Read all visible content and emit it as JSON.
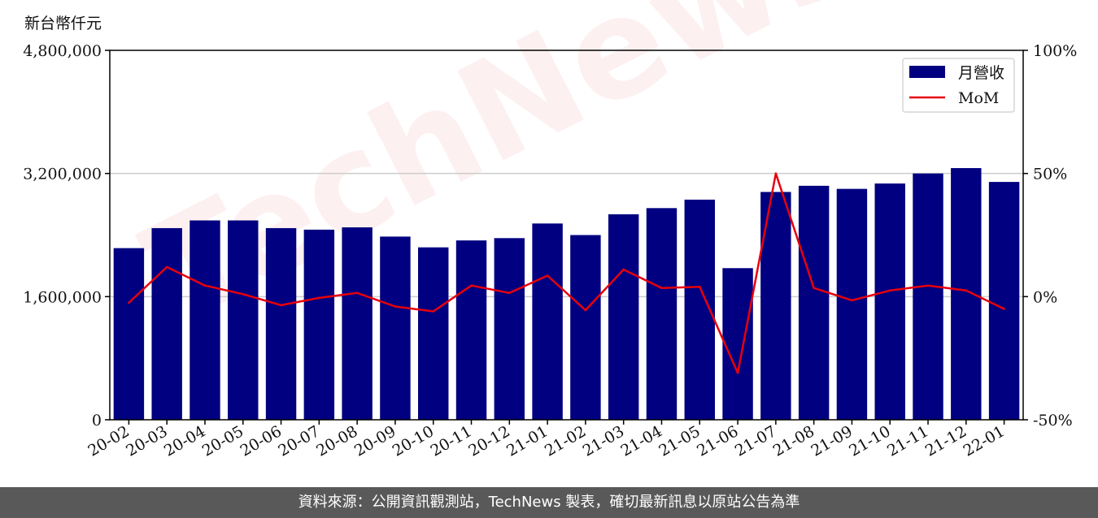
{
  "unit_label": "新台幣仟元",
  "watermark": "TechNews",
  "footer": "資料來源：公開資訊觀測站，TechNews 製表，確切最新訊息以原站公告為準",
  "chart_data": {
    "type": "bar",
    "categories": [
      "20-02",
      "20-03",
      "20-04",
      "20-05",
      "20-06",
      "20-07",
      "20-08",
      "20-09",
      "20-10",
      "20-11",
      "20-12",
      "21-01",
      "21-02",
      "21-03",
      "21-04",
      "21-05",
      "21-06",
      "21-07",
      "21-08",
      "21-09",
      "21-10",
      "21-11",
      "21-12",
      "22-01"
    ],
    "series": [
      {
        "name": "月營收",
        "axis": "left",
        "type": "bar",
        "color": "#000080",
        "values": [
          2230000,
          2490000,
          2590000,
          2590000,
          2490000,
          2470000,
          2500000,
          2380000,
          2240000,
          2330000,
          2360000,
          2550000,
          2400000,
          2670000,
          2750000,
          2860000,
          1970000,
          2960000,
          3040000,
          3000000,
          3070000,
          3200000,
          3270000,
          3090000
        ]
      },
      {
        "name": "MoM",
        "axis": "right",
        "type": "line",
        "color": "#e8000b",
        "values": [
          -2.5,
          12.0,
          4.5,
          1.0,
          -3.5,
          -0.5,
          1.5,
          -4.0,
          -6.0,
          4.5,
          1.5,
          8.5,
          -5.5,
          11.0,
          3.5,
          4.0,
          -31.0,
          50.0,
          3.5,
          -1.5,
          2.5,
          4.5,
          2.5,
          -5.0
        ]
      }
    ],
    "y_left": {
      "ylim": [
        0,
        4800000
      ],
      "ticks": [
        "0",
        "1,600,000",
        "3,200,000",
        "4,800,000"
      ]
    },
    "y_right": {
      "ylim": [
        -50,
        100
      ],
      "ticks": [
        "-50%",
        "0%",
        "50%",
        "100%"
      ]
    },
    "grid": "horizontal",
    "legend_position": "top-right",
    "colors": {
      "bar": "#000080",
      "line": "#e8000b",
      "grid": "#cccccc"
    }
  }
}
